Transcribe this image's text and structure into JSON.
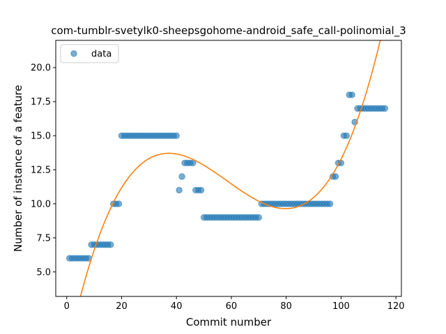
{
  "chart_data": {
    "type": "scatter",
    "title": "com-tumblr-svetylk0-sheepsgohome-android_safe_call-polinomial_3",
    "xlabel": "Commit number",
    "ylabel": "Number of instance of a feature",
    "xlim": [
      -4,
      122
    ],
    "ylim": [
      3.2,
      22
    ],
    "xticks": [
      0,
      20,
      40,
      60,
      80,
      100,
      120
    ],
    "yticks": [
      5.0,
      7.5,
      10.0,
      12.5,
      15.0,
      17.5,
      20.0
    ],
    "ytick_labels": [
      "5.0",
      "7.5",
      "10.0",
      "12.5",
      "15.0",
      "17.5",
      "20.0"
    ],
    "legend": {
      "position": "top-left",
      "entries": [
        "data"
      ]
    },
    "series": [
      {
        "name": "data",
        "kind": "scatter",
        "color": "#1f77b4",
        "x": [
          1,
          2,
          3,
          4,
          5,
          6,
          7,
          8,
          9,
          10,
          11,
          12,
          13,
          14,
          15,
          16,
          17,
          18,
          19,
          20,
          21,
          22,
          23,
          24,
          25,
          26,
          27,
          28,
          29,
          30,
          31,
          32,
          33,
          34,
          35,
          36,
          37,
          38,
          39,
          40,
          41,
          42,
          43,
          44,
          45,
          46,
          47,
          48,
          49,
          50,
          51,
          52,
          53,
          54,
          55,
          56,
          57,
          58,
          59,
          60,
          61,
          62,
          63,
          64,
          65,
          66,
          67,
          68,
          69,
          70,
          71,
          72,
          73,
          74,
          75,
          76,
          77,
          78,
          79,
          80,
          81,
          82,
          83,
          84,
          85,
          86,
          87,
          88,
          89,
          90,
          91,
          92,
          93,
          94,
          95,
          96,
          97,
          98,
          99,
          100,
          101,
          102,
          103,
          104,
          105,
          106,
          107,
          108,
          109,
          110,
          111,
          112,
          113,
          114,
          115,
          116
        ],
        "y": [
          6,
          6,
          6,
          6,
          6,
          6,
          6,
          6,
          7,
          7,
          7,
          7,
          7,
          7,
          7,
          7,
          10,
          10,
          10,
          15,
          15,
          15,
          15,
          15,
          15,
          15,
          15,
          15,
          15,
          15,
          15,
          15,
          15,
          15,
          15,
          15,
          15,
          15,
          15,
          15,
          11,
          12,
          13,
          13,
          13,
          13,
          11,
          11,
          11,
          9,
          9,
          9,
          9,
          9,
          9,
          9,
          9,
          9,
          9,
          9,
          9,
          9,
          9,
          9,
          9,
          9,
          9,
          9,
          9,
          9,
          10,
          10,
          10,
          10,
          10,
          10,
          10,
          10,
          10,
          10,
          10,
          10,
          10,
          10,
          10,
          10,
          10,
          10,
          10,
          10,
          10,
          10,
          10,
          10,
          10,
          10,
          12,
          12,
          13,
          13,
          15,
          15,
          18,
          18,
          16,
          17,
          17,
          17,
          17,
          17,
          17,
          17,
          17,
          17,
          17,
          17
        ]
      },
      {
        "name": "",
        "kind": "line",
        "color": "#ff7f0e",
        "polynomial_coefficients": [
          0.00010547,
          -0.018508,
          0.9394,
          -1.0547
        ],
        "x_range": [
          1,
          116
        ]
      }
    ]
  }
}
